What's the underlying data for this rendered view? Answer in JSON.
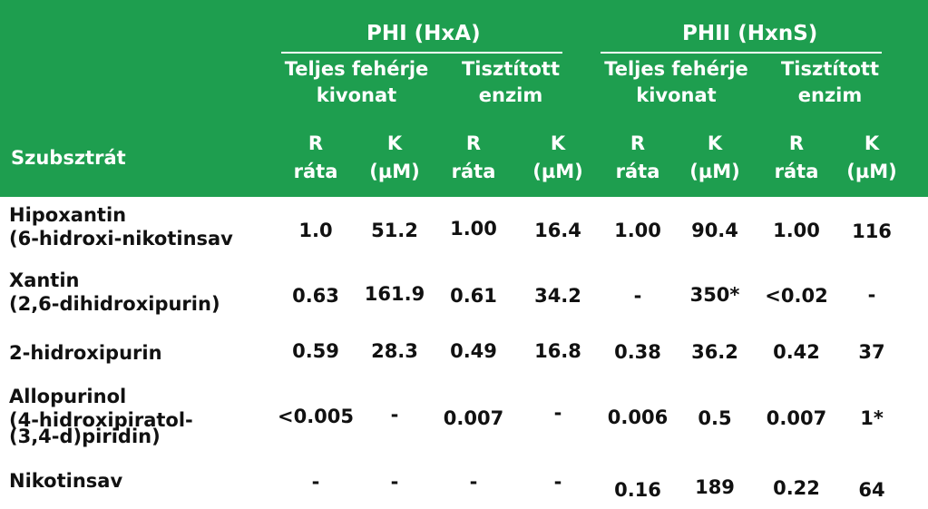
{
  "header": {
    "substrate_label": "Szubsztrát",
    "groups": [
      {
        "title": "PHI (HxA)",
        "subs": [
          "Teljes fehérje kivonat",
          "Tisztított enzim"
        ]
      },
      {
        "title": "PHII (HxnS)",
        "subs": [
          "Teljes fehérje kivonat",
          "Tisztított enzim"
        ]
      }
    ],
    "sub_lines": {
      "whole": [
        "Teljes fehérje",
        "kivonat"
      ],
      "purified": [
        "Tisztított",
        "enzim"
      ]
    },
    "col_r": [
      "R",
      "ráta"
    ],
    "col_k": [
      "K",
      "(µM)"
    ]
  },
  "rows": [
    {
      "label": [
        "Hipoxantin",
        "(6-hidroxi-nikotinsav"
      ],
      "values": [
        "1.0",
        "51.2",
        "1.00",
        "16.4",
        "1.00",
        "90.4",
        "1.00",
        "116"
      ]
    },
    {
      "label": [
        "Xantin",
        "(2,6-dihidroxipurin)"
      ],
      "values": [
        "0.63",
        "161.9",
        "0.61",
        "34.2",
        "-",
        "350*",
        "<0.02",
        "-"
      ]
    },
    {
      "label": [
        "2-hidroxipurin"
      ],
      "values": [
        "0.59",
        "28.3",
        "0.49",
        "16.8",
        "0.38",
        "36.2",
        "0.42",
        "37"
      ]
    },
    {
      "label": [
        "Allopurinol",
        "(4-hidroxipiratol-",
        "(3,4-d)piridin)"
      ],
      "values": [
        "<0.005",
        "-",
        "0.007",
        "-",
        "0.006",
        "0.5",
        "0.007",
        "1*"
      ]
    },
    {
      "label": [
        "Nikotinsav"
      ],
      "values": [
        "-",
        "-",
        "-",
        "-",
        "0.16",
        "189",
        "0.22",
        "64"
      ]
    }
  ]
}
